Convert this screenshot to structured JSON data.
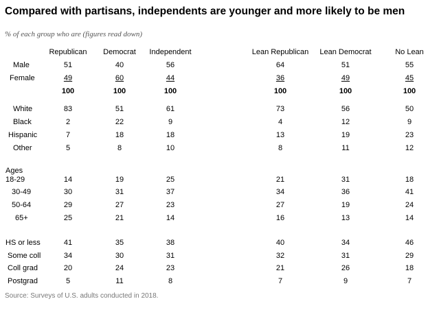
{
  "title": "Compared with partisans, independents are younger and more likely to be men",
  "subtitle": "% of each group who are (figures read down)",
  "source": "Source: Surveys of U.S. adults conducted in 2018.",
  "chart_data": {
    "type": "table",
    "columns": [
      "Republican",
      "Democrat",
      "Independent",
      "Lean Republican",
      "Lean Democrat",
      "No Lean"
    ],
    "groups": [
      {
        "rows": [
          {
            "label": "Male",
            "values": [
              "51",
              "40",
              "56",
              "64",
              "51",
              "55"
            ]
          },
          {
            "label": "Female",
            "values": [
              "49",
              "60",
              "44",
              "36",
              "49",
              "45"
            ],
            "underline": true
          },
          {
            "label": "",
            "values": [
              "100",
              "100",
              "100",
              "100",
              "100",
              "100"
            ],
            "bold": true
          }
        ]
      },
      {
        "rows": [
          {
            "label": "White",
            "values": [
              "83",
              "51",
              "61",
              "73",
              "56",
              "50"
            ]
          },
          {
            "label": "Black",
            "values": [
              "2",
              "22",
              "9",
              "4",
              "12",
              "9"
            ]
          },
          {
            "label": "Hispanic",
            "values": [
              "7",
              "18",
              "18",
              "13",
              "19",
              "23"
            ]
          },
          {
            "label": "Other",
            "values": [
              "5",
              "8",
              "10",
              "8",
              "11",
              "12"
            ]
          }
        ]
      },
      {
        "heading": "Ages",
        "rows": [
          {
            "label": "18-29",
            "values": [
              "14",
              "19",
              "25",
              "21",
              "31",
              "18"
            ]
          },
          {
            "label": "30-49",
            "values": [
              "30",
              "31",
              "37",
              "34",
              "36",
              "41"
            ]
          },
          {
            "label": "50-64",
            "values": [
              "29",
              "27",
              "23",
              "27",
              "19",
              "24"
            ]
          },
          {
            "label": "65+",
            "values": [
              "25",
              "21",
              "14",
              "16",
              "13",
              "14"
            ]
          }
        ]
      },
      {
        "rows": [
          {
            "label": "HS or less",
            "values": [
              "41",
              "35",
              "38",
              "40",
              "34",
              "46"
            ]
          },
          {
            "label": "Some coll",
            "values": [
              "34",
              "30",
              "31",
              "32",
              "31",
              "29"
            ]
          },
          {
            "label": "Coll grad",
            "values": [
              "20",
              "24",
              "23",
              "21",
              "26",
              "18"
            ]
          },
          {
            "label": "Postgrad",
            "values": [
              "5",
              "11",
              "8",
              "7",
              "9",
              "7"
            ]
          }
        ]
      }
    ]
  }
}
